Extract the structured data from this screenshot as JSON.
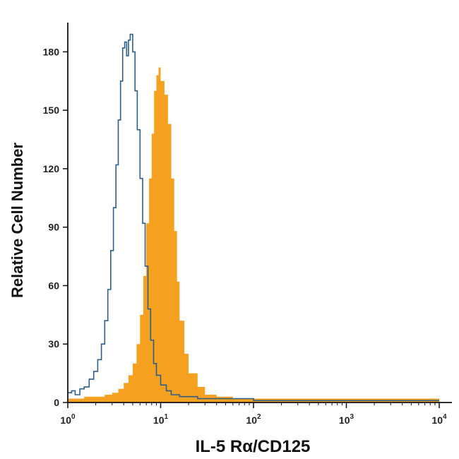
{
  "chart_data": {
    "type": "histogram",
    "title": "",
    "xlabel": "IL-5 Rα/CD125",
    "ylabel": "Relative Cell Number",
    "x_scale": "log",
    "xlim": [
      1,
      10000
    ],
    "ylim": [
      0,
      195
    ],
    "x_ticks": [
      {
        "value": 1,
        "base": "10",
        "exp": "0"
      },
      {
        "value": 10,
        "base": "10",
        "exp": "1"
      },
      {
        "value": 100,
        "base": "10",
        "exp": "2"
      },
      {
        "value": 1000,
        "base": "10",
        "exp": "3"
      },
      {
        "value": 10000,
        "base": "10",
        "exp": "4"
      }
    ],
    "y_ticks": [
      0,
      30,
      60,
      90,
      120,
      150,
      180
    ],
    "grid": false,
    "legend": "none",
    "series": [
      {
        "style": "filled",
        "color": "#F5A01E",
        "points": [
          [
            1.0,
            2
          ],
          [
            1.5,
            3
          ],
          [
            2.0,
            3
          ],
          [
            2.5,
            4
          ],
          [
            3.0,
            5
          ],
          [
            3.5,
            7
          ],
          [
            4.0,
            10
          ],
          [
            4.5,
            14
          ],
          [
            5.0,
            20
          ],
          [
            5.5,
            30
          ],
          [
            6.0,
            45
          ],
          [
            6.5,
            65
          ],
          [
            7.0,
            92
          ],
          [
            7.5,
            115
          ],
          [
            8.0,
            138
          ],
          [
            8.5,
            160
          ],
          [
            9.0,
            168
          ],
          [
            9.5,
            172
          ],
          [
            10.0,
            165
          ],
          [
            11.0,
            158
          ],
          [
            12.0,
            143
          ],
          [
            13.0,
            115
          ],
          [
            14.0,
            88
          ],
          [
            15.0,
            62
          ],
          [
            16.0,
            42
          ],
          [
            18.0,
            25
          ],
          [
            20.0,
            15
          ],
          [
            25.0,
            8
          ],
          [
            30.0,
            4
          ],
          [
            40.0,
            3
          ],
          [
            60.0,
            2
          ],
          [
            100.0,
            2
          ],
          [
            1000.0,
            2
          ],
          [
            10000.0,
            2
          ]
        ]
      },
      {
        "style": "outline",
        "color": "#2D5F88",
        "points": [
          [
            1.0,
            5
          ],
          [
            1.1,
            6
          ],
          [
            1.2,
            4
          ],
          [
            1.35,
            7
          ],
          [
            1.5,
            8
          ],
          [
            1.7,
            12
          ],
          [
            1.9,
            16
          ],
          [
            2.1,
            22
          ],
          [
            2.3,
            30
          ],
          [
            2.5,
            42
          ],
          [
            2.7,
            58
          ],
          [
            2.9,
            78
          ],
          [
            3.1,
            100
          ],
          [
            3.3,
            122
          ],
          [
            3.5,
            145
          ],
          [
            3.7,
            165
          ],
          [
            3.9,
            182
          ],
          [
            4.1,
            185
          ],
          [
            4.3,
            178
          ],
          [
            4.5,
            186
          ],
          [
            4.7,
            189
          ],
          [
            5.0,
            180
          ],
          [
            5.3,
            160
          ],
          [
            5.6,
            140
          ],
          [
            6.0,
            115
          ],
          [
            6.4,
            92
          ],
          [
            6.8,
            70
          ],
          [
            7.3,
            48
          ],
          [
            7.8,
            32
          ],
          [
            8.4,
            20
          ],
          [
            9.0,
            14
          ],
          [
            10.0,
            9
          ],
          [
            11.5,
            6
          ],
          [
            13.0,
            4
          ],
          [
            16.0,
            3
          ],
          [
            25.0,
            2
          ],
          [
            50.0,
            2
          ],
          [
            100.0,
            1
          ],
          [
            1000.0,
            1
          ],
          [
            10000.0,
            1
          ]
        ]
      }
    ]
  }
}
